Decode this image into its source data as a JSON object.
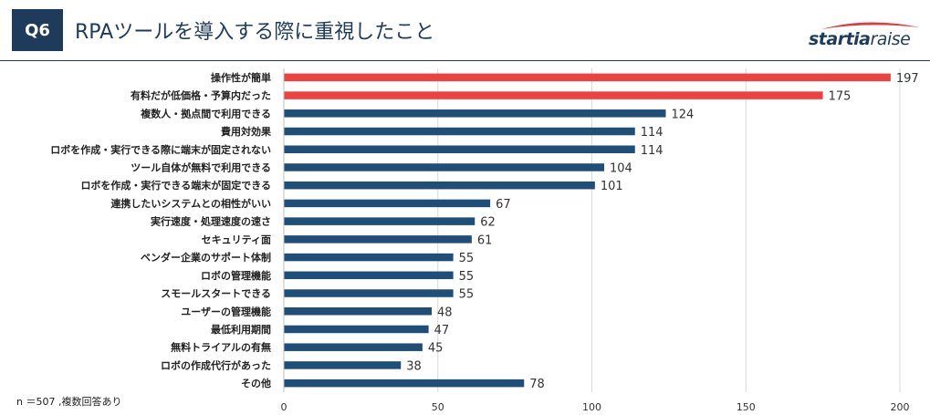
{
  "header": {
    "badge": "Q6",
    "title": "RPAツールを導入する際に重視したこと",
    "logo_bold": "startia",
    "logo_light": "raise"
  },
  "footnote": "n ＝507 ,複数回答あり",
  "colors": {
    "navy": "#1f3b5c",
    "bar_default": "#1f4e79",
    "bar_highlight": "#f04141",
    "logo_swoosh": "#e03a3a"
  },
  "chart_data": {
    "type": "bar",
    "orientation": "horizontal",
    "categories": [
      "操作性が簡単",
      "有料だが低価格・予算内だった",
      "複数人・拠点間で利用できる",
      "費用対効果",
      "ロボを作成・実行できる際に端末が固定されない",
      "ツール自体が無料で利用できる",
      "ロボを作成・実行できる端末が固定できる",
      "連携したいシステムとの相性がいい",
      "実行速度・処理速度の速さ",
      "セキュリティ面",
      "ベンダー企業のサポート体制",
      "ロボの管理機能",
      "スモールスタートできる",
      "ユーザーの管理機能",
      "最低利用期間",
      "無料トライアルの有無",
      "ロボの作成代行があった",
      "その他"
    ],
    "values": [
      197,
      175,
      124,
      114,
      114,
      104,
      101,
      67,
      62,
      61,
      55,
      55,
      55,
      48,
      47,
      45,
      38,
      78
    ],
    "highlight": [
      true,
      true,
      false,
      false,
      false,
      false,
      false,
      false,
      false,
      false,
      false,
      false,
      false,
      false,
      false,
      false,
      false,
      false
    ],
    "xlim": [
      0,
      200
    ],
    "xticks": [
      "0",
      "50",
      "100",
      "150",
      "200"
    ],
    "grid": true,
    "legend": "none"
  }
}
